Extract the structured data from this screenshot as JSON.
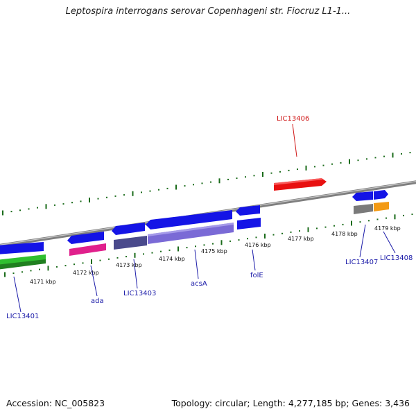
{
  "title": "Leptospira interrogans serovar Copenhageni str. Fiocruz L1-1...",
  "footer": {
    "accession": "Accession: NC_005823",
    "summary": "Topology: circular; Length: 4,277,185 bp; Genes: 3,436"
  },
  "colors": {
    "backbone": "#888888",
    "tick": "#1a6b1a",
    "label_default": "#1a1aa8",
    "label_highlight": "#d01818",
    "gene_blue": "#1414e6",
    "gene_red": "#e81010",
    "gene_green": "#2fbf2f",
    "gene_magenta": "#e0208c",
    "gene_dark_slate": "#4a4a8c",
    "gene_lavender": "#7a6ad6",
    "gene_gray": "#7a7a7a",
    "gene_orange": "#f39a14"
  },
  "ruler": {
    "kbp_labels": [
      "4171 kbp",
      "4172 kbp",
      "4173 kbp",
      "4174 kbp",
      "4175 kbp",
      "4176 kbp",
      "4177 kbp",
      "4178 kbp",
      "4179 kbp"
    ]
  },
  "genes": [
    {
      "name": "LIC13401",
      "color": "label_default"
    },
    {
      "name": "ada",
      "color": "label_default"
    },
    {
      "name": "LIC13403",
      "color": "label_default"
    },
    {
      "name": "acsA",
      "color": "label_default"
    },
    {
      "name": "folE",
      "color": "label_default"
    },
    {
      "name": "LIC13406",
      "color": "label_highlight"
    },
    {
      "name": "LIC13407",
      "color": "label_default"
    },
    {
      "name": "LIC13408",
      "color": "label_default"
    }
  ]
}
